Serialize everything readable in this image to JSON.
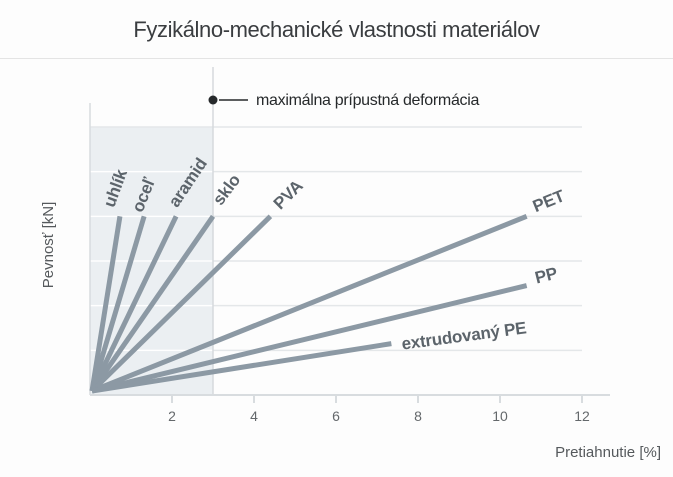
{
  "page": {
    "title": "Fyzikálno-mechanické vlastnosti materiálov"
  },
  "chart_data": {
    "type": "line",
    "title": "Fyzikálno-mechanické vlastnosti materiálov",
    "xlabel": "Pretiahnutie [%]",
    "ylabel": "Pevnosť [kN]",
    "xlim": [
      0,
      12.7
    ],
    "ylim": [
      0,
      6
    ],
    "x_ticks": [
      2,
      4,
      6,
      8,
      10,
      12
    ],
    "y_ticks_labeled": false,
    "grid": "horizontal",
    "legend_position": "labels-on-lines",
    "shaded_region": {
      "x_start": 0,
      "x_end": 3
    },
    "annotation": {
      "text": "maximálna prípustná deformácia",
      "x": 3
    },
    "series": [
      {
        "name": "uhlík",
        "x": [
          0,
          0.73
        ],
        "y": [
          0,
          4
        ],
        "label": {
          "angle": -70,
          "dx": -6,
          "dy": -8
        }
      },
      {
        "name": "oceľ",
        "x": [
          0,
          1.32
        ],
        "y": [
          0,
          4
        ],
        "label": {
          "angle": -68,
          "dx": -2,
          "dy": -3
        }
      },
      {
        "name": "aramid",
        "x": [
          0,
          2.1
        ],
        "y": [
          0,
          4
        ],
        "label": {
          "angle": -56,
          "dx": 1,
          "dy": -8
        }
      },
      {
        "name": "sklo",
        "x": [
          0,
          3.0
        ],
        "y": [
          0,
          4
        ],
        "label": {
          "angle": -53,
          "dx": 8,
          "dy": -10
        }
      },
      {
        "name": "PVA",
        "x": [
          0,
          4.4
        ],
        "y": [
          0,
          4
        ],
        "label": {
          "angle": -45,
          "dx": 10,
          "dy": -6
        }
      },
      {
        "name": "PET",
        "x": [
          0,
          10.65
        ],
        "y": [
          0,
          4
        ],
        "label": {
          "angle": -22,
          "dx": 9,
          "dy": -4
        }
      },
      {
        "name": "PP",
        "x": [
          0,
          10.65
        ],
        "y": [
          0,
          2.45
        ],
        "label": {
          "angle": -14,
          "dx": 10,
          "dy": -2
        }
      },
      {
        "name": "extrudovaný PE",
        "x": [
          0,
          7.35
        ],
        "y": [
          0,
          1.15
        ],
        "label": {
          "angle": -7.5,
          "dx": 11,
          "dy": 6
        }
      }
    ],
    "colors": {
      "line": "#8c99a4",
      "series_label": "#5c646b",
      "shade": "#ebeff2",
      "grid": "#e4e7e9",
      "grid_on_shade": "#ffffff",
      "axis": "#d8dcdf",
      "tick_label": "#64686b",
      "axis_title": "#55595c",
      "annotation": "#26292b",
      "title": "#3a3d40"
    }
  }
}
